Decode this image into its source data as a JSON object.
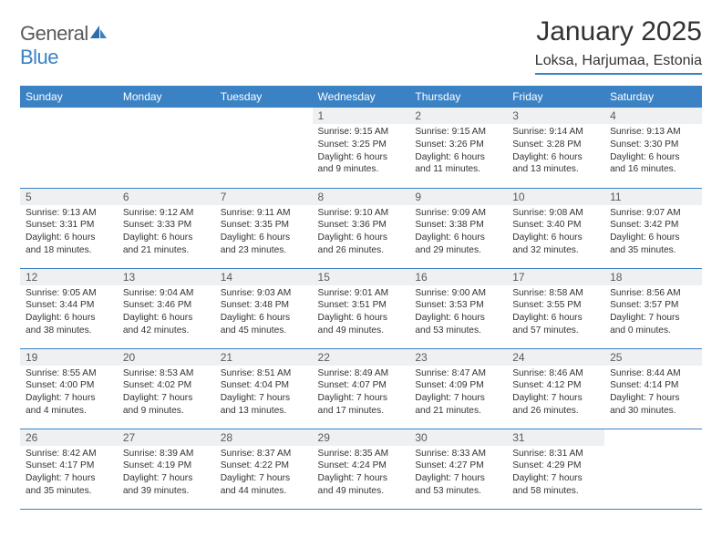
{
  "brand": {
    "part1": "General",
    "part2": "Blue"
  },
  "title": "January 2025",
  "location": "Loksa, Harjumaa, Estonia",
  "colors": {
    "header_bg": "#3b82c4",
    "header_fg": "#ffffff",
    "daynum_bg": "#eef0f2",
    "daynum_fg": "#5a5a5a",
    "rule": "#3b82c4",
    "text": "#333333"
  },
  "day_headers": [
    "Sunday",
    "Monday",
    "Tuesday",
    "Wednesday",
    "Thursday",
    "Friday",
    "Saturday"
  ],
  "weeks": [
    [
      {
        "n": "",
        "sunrise": "",
        "sunset": "",
        "daylight": ""
      },
      {
        "n": "",
        "sunrise": "",
        "sunset": "",
        "daylight": ""
      },
      {
        "n": "",
        "sunrise": "",
        "sunset": "",
        "daylight": ""
      },
      {
        "n": "1",
        "sunrise": "Sunrise: 9:15 AM",
        "sunset": "Sunset: 3:25 PM",
        "daylight": "Daylight: 6 hours and 9 minutes."
      },
      {
        "n": "2",
        "sunrise": "Sunrise: 9:15 AM",
        "sunset": "Sunset: 3:26 PM",
        "daylight": "Daylight: 6 hours and 11 minutes."
      },
      {
        "n": "3",
        "sunrise": "Sunrise: 9:14 AM",
        "sunset": "Sunset: 3:28 PM",
        "daylight": "Daylight: 6 hours and 13 minutes."
      },
      {
        "n": "4",
        "sunrise": "Sunrise: 9:13 AM",
        "sunset": "Sunset: 3:30 PM",
        "daylight": "Daylight: 6 hours and 16 minutes."
      }
    ],
    [
      {
        "n": "5",
        "sunrise": "Sunrise: 9:13 AM",
        "sunset": "Sunset: 3:31 PM",
        "daylight": "Daylight: 6 hours and 18 minutes."
      },
      {
        "n": "6",
        "sunrise": "Sunrise: 9:12 AM",
        "sunset": "Sunset: 3:33 PM",
        "daylight": "Daylight: 6 hours and 21 minutes."
      },
      {
        "n": "7",
        "sunrise": "Sunrise: 9:11 AM",
        "sunset": "Sunset: 3:35 PM",
        "daylight": "Daylight: 6 hours and 23 minutes."
      },
      {
        "n": "8",
        "sunrise": "Sunrise: 9:10 AM",
        "sunset": "Sunset: 3:36 PM",
        "daylight": "Daylight: 6 hours and 26 minutes."
      },
      {
        "n": "9",
        "sunrise": "Sunrise: 9:09 AM",
        "sunset": "Sunset: 3:38 PM",
        "daylight": "Daylight: 6 hours and 29 minutes."
      },
      {
        "n": "10",
        "sunrise": "Sunrise: 9:08 AM",
        "sunset": "Sunset: 3:40 PM",
        "daylight": "Daylight: 6 hours and 32 minutes."
      },
      {
        "n": "11",
        "sunrise": "Sunrise: 9:07 AM",
        "sunset": "Sunset: 3:42 PM",
        "daylight": "Daylight: 6 hours and 35 minutes."
      }
    ],
    [
      {
        "n": "12",
        "sunrise": "Sunrise: 9:05 AM",
        "sunset": "Sunset: 3:44 PM",
        "daylight": "Daylight: 6 hours and 38 minutes."
      },
      {
        "n": "13",
        "sunrise": "Sunrise: 9:04 AM",
        "sunset": "Sunset: 3:46 PM",
        "daylight": "Daylight: 6 hours and 42 minutes."
      },
      {
        "n": "14",
        "sunrise": "Sunrise: 9:03 AM",
        "sunset": "Sunset: 3:48 PM",
        "daylight": "Daylight: 6 hours and 45 minutes."
      },
      {
        "n": "15",
        "sunrise": "Sunrise: 9:01 AM",
        "sunset": "Sunset: 3:51 PM",
        "daylight": "Daylight: 6 hours and 49 minutes."
      },
      {
        "n": "16",
        "sunrise": "Sunrise: 9:00 AM",
        "sunset": "Sunset: 3:53 PM",
        "daylight": "Daylight: 6 hours and 53 minutes."
      },
      {
        "n": "17",
        "sunrise": "Sunrise: 8:58 AM",
        "sunset": "Sunset: 3:55 PM",
        "daylight": "Daylight: 6 hours and 57 minutes."
      },
      {
        "n": "18",
        "sunrise": "Sunrise: 8:56 AM",
        "sunset": "Sunset: 3:57 PM",
        "daylight": "Daylight: 7 hours and 0 minutes."
      }
    ],
    [
      {
        "n": "19",
        "sunrise": "Sunrise: 8:55 AM",
        "sunset": "Sunset: 4:00 PM",
        "daylight": "Daylight: 7 hours and 4 minutes."
      },
      {
        "n": "20",
        "sunrise": "Sunrise: 8:53 AM",
        "sunset": "Sunset: 4:02 PM",
        "daylight": "Daylight: 7 hours and 9 minutes."
      },
      {
        "n": "21",
        "sunrise": "Sunrise: 8:51 AM",
        "sunset": "Sunset: 4:04 PM",
        "daylight": "Daylight: 7 hours and 13 minutes."
      },
      {
        "n": "22",
        "sunrise": "Sunrise: 8:49 AM",
        "sunset": "Sunset: 4:07 PM",
        "daylight": "Daylight: 7 hours and 17 minutes."
      },
      {
        "n": "23",
        "sunrise": "Sunrise: 8:47 AM",
        "sunset": "Sunset: 4:09 PM",
        "daylight": "Daylight: 7 hours and 21 minutes."
      },
      {
        "n": "24",
        "sunrise": "Sunrise: 8:46 AM",
        "sunset": "Sunset: 4:12 PM",
        "daylight": "Daylight: 7 hours and 26 minutes."
      },
      {
        "n": "25",
        "sunrise": "Sunrise: 8:44 AM",
        "sunset": "Sunset: 4:14 PM",
        "daylight": "Daylight: 7 hours and 30 minutes."
      }
    ],
    [
      {
        "n": "26",
        "sunrise": "Sunrise: 8:42 AM",
        "sunset": "Sunset: 4:17 PM",
        "daylight": "Daylight: 7 hours and 35 minutes."
      },
      {
        "n": "27",
        "sunrise": "Sunrise: 8:39 AM",
        "sunset": "Sunset: 4:19 PM",
        "daylight": "Daylight: 7 hours and 39 minutes."
      },
      {
        "n": "28",
        "sunrise": "Sunrise: 8:37 AM",
        "sunset": "Sunset: 4:22 PM",
        "daylight": "Daylight: 7 hours and 44 minutes."
      },
      {
        "n": "29",
        "sunrise": "Sunrise: 8:35 AM",
        "sunset": "Sunset: 4:24 PM",
        "daylight": "Daylight: 7 hours and 49 minutes."
      },
      {
        "n": "30",
        "sunrise": "Sunrise: 8:33 AM",
        "sunset": "Sunset: 4:27 PM",
        "daylight": "Daylight: 7 hours and 53 minutes."
      },
      {
        "n": "31",
        "sunrise": "Sunrise: 8:31 AM",
        "sunset": "Sunset: 4:29 PM",
        "daylight": "Daylight: 7 hours and 58 minutes."
      },
      {
        "n": "",
        "sunrise": "",
        "sunset": "",
        "daylight": ""
      }
    ]
  ]
}
